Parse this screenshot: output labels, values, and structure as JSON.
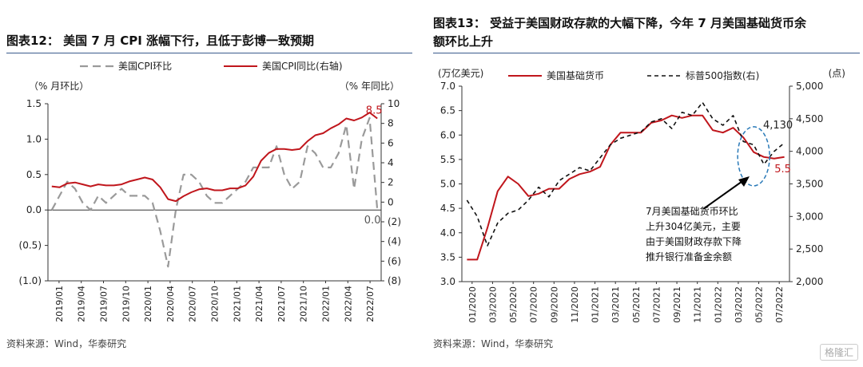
{
  "left": {
    "title": "图表12： 美国 7 月 CPI 涨幅下行，且低于彭博一致预期",
    "source": "资料来源：Wind，华泰研究",
    "chart_data": {
      "type": "line",
      "legend_placement": "top",
      "ylabel_left": "（% 月环比）",
      "ylabel_right": "（% 年同比）",
      "ylim_left": [
        -1.0,
        1.5
      ],
      "ylim_right": [
        -8,
        10
      ],
      "yticks_left": [
        -1.0,
        -0.5,
        0.0,
        0.5,
        1.0,
        1.5
      ],
      "ytick_labels_left": [
        "(1.0)",
        "(0.5)",
        "0.0",
        "0.5",
        "1.0",
        "1.5"
      ],
      "yticks_right": [
        -8,
        -6,
        -4,
        -2,
        0,
        2,
        4,
        6,
        8,
        10
      ],
      "ytick_labels_right": [
        "(8)",
        "(6)",
        "(4)",
        "(2)",
        "0",
        "2",
        "4",
        "6",
        "8",
        "10"
      ],
      "xtick_labels": [
        "2019/01",
        "2019/04",
        "2019/07",
        "2019/10",
        "2020/01",
        "2020/04",
        "2020/07",
        "2020/10",
        "2021/01",
        "2021/04",
        "2021/07",
        "2021/10",
        "2022/01",
        "2022/04",
        "2022/07"
      ],
      "annotations": [
        "8.5",
        "0.0"
      ],
      "series": [
        {
          "name": "美国CPI环比",
          "axis": "left",
          "style": "dashed",
          "color": "#9a9a9a",
          "values": [
            0.0,
            0.2,
            0.4,
            0.3,
            0.1,
            0.0,
            0.2,
            0.1,
            0.2,
            0.3,
            0.2,
            0.2,
            0.2,
            0.1,
            -0.3,
            -0.8,
            0.0,
            0.5,
            0.5,
            0.4,
            0.2,
            0.1,
            0.1,
            0.2,
            0.3,
            0.4,
            0.6,
            0.6,
            0.6,
            0.9,
            0.5,
            0.3,
            0.4,
            0.9,
            0.8,
            0.6,
            0.6,
            0.8,
            1.2,
            0.3,
            1.0,
            1.3,
            0.0
          ]
        },
        {
          "name": "美国CPI同比(右轴)",
          "axis": "right",
          "style": "solid",
          "color": "#c0161c",
          "values": [
            1.6,
            1.5,
            1.9,
            2.0,
            1.8,
            1.6,
            1.8,
            1.7,
            1.7,
            1.8,
            2.1,
            2.3,
            2.5,
            2.3,
            1.5,
            0.3,
            0.1,
            0.6,
            1.0,
            1.3,
            1.4,
            1.2,
            1.2,
            1.4,
            1.4,
            1.7,
            2.6,
            4.2,
            5.0,
            5.4,
            5.4,
            5.3,
            5.4,
            6.2,
            6.8,
            7.0,
            7.5,
            7.9,
            8.5,
            8.3,
            8.6,
            9.1,
            8.5
          ]
        }
      ]
    }
  },
  "right": {
    "title_line1": "图表13： 受益于美国财政存款的大幅下降，今年 7 月美国基础货币余",
    "title_line2": "额环比上升",
    "source": "资料来源：Wind，华泰研究",
    "logo": "格隆汇",
    "chart_data": {
      "type": "line",
      "legend_placement": "top",
      "ylabel_left": "(万亿美元)",
      "ylabel_right": "(点)",
      "ylim_left": [
        3.0,
        7.0
      ],
      "ylim_right": [
        2000,
        5000
      ],
      "yticks_left": [
        3.0,
        3.5,
        4.0,
        4.5,
        5.0,
        5.5,
        6.0,
        6.5,
        7.0
      ],
      "ytick_labels_left": [
        "3.0",
        "3.5",
        "4.0",
        "4.5",
        "5.0",
        "5.5",
        "6.0",
        "6.5",
        "7.0"
      ],
      "yticks_right": [
        2000,
        2500,
        3000,
        3500,
        4000,
        4500,
        5000
      ],
      "ytick_labels_right": [
        "2,000",
        "2,500",
        "3,000",
        "3,500",
        "4,000",
        "4,500",
        "5,000"
      ],
      "xtick_labels": [
        "01/2020",
        "03/2020",
        "05/2020",
        "07/2020",
        "09/2020",
        "11/2020",
        "01/2021",
        "03/2021",
        "05/2021",
        "07/2021",
        "09/2021",
        "11/2021",
        "01/2022",
        "03/2022",
        "05/2022",
        "07/2022"
      ],
      "annotations": [
        "4,130",
        "5.5"
      ],
      "callout": [
        "7月美国基础货币环比",
        "上升304亿美元，主要",
        "由于美国财政存款下降",
        "推升银行准备金余额"
      ],
      "series": [
        {
          "name": "美国基础货币",
          "axis": "left",
          "style": "solid",
          "color": "#c0161c",
          "values": [
            3.45,
            3.45,
            4.1,
            4.85,
            5.15,
            5.0,
            4.75,
            4.8,
            4.9,
            4.9,
            5.1,
            5.2,
            5.25,
            5.35,
            5.8,
            6.05,
            6.05,
            6.05,
            6.25,
            6.3,
            6.4,
            6.35,
            6.4,
            6.4,
            6.1,
            6.05,
            6.15,
            5.95,
            5.65,
            5.55,
            5.52,
            5.55
          ]
        },
        {
          "name": "标普500指数(右)",
          "axis": "right",
          "style": "dashed",
          "color": "#111111",
          "values": [
            3250,
            3000,
            2550,
            2900,
            3050,
            3100,
            3250,
            3450,
            3300,
            3550,
            3650,
            3750,
            3700,
            3900,
            4100,
            4200,
            4250,
            4300,
            4450,
            4500,
            4350,
            4600,
            4550,
            4750,
            4500,
            4400,
            4550,
            4150,
            4100,
            3800,
            4000,
            4130
          ]
        }
      ]
    }
  }
}
